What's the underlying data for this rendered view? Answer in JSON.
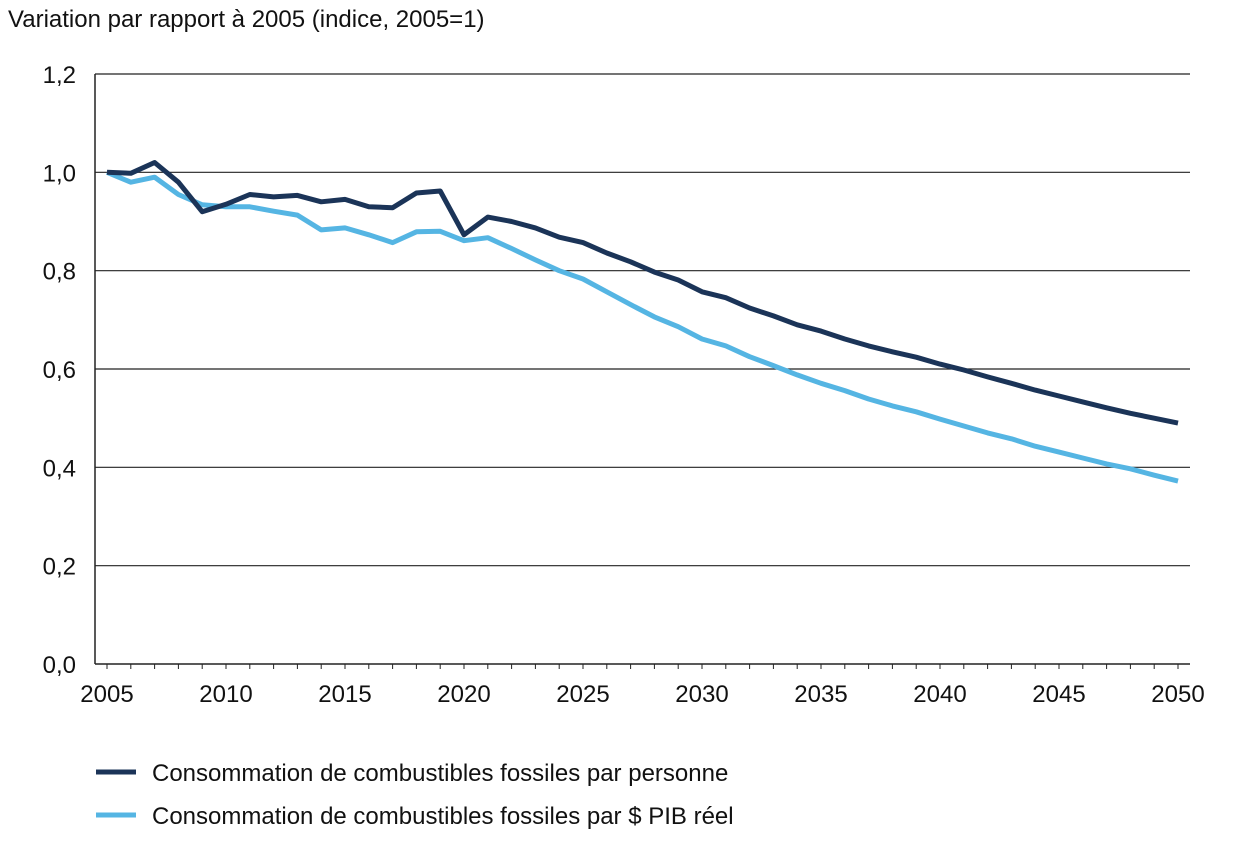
{
  "chart_data": {
    "type": "line",
    "title": "",
    "ylabel": "Variation par rapport à 2005 (indice, 2005=1)",
    "xlabel": "",
    "xlim": [
      2005,
      2050
    ],
    "ylim": [
      0,
      1.2
    ],
    "grid": "horizontal",
    "legend_placement": "bottom-left",
    "x_ticks": [
      "2005",
      "2010",
      "2015",
      "2020",
      "2025",
      "2030",
      "2035",
      "2040",
      "2045",
      "2050"
    ],
    "y_ticks": [
      "0,0",
      "0,2",
      "0,4",
      "0,6",
      "0,8",
      "1,0",
      "1,2"
    ],
    "x": [
      2005,
      2006,
      2007,
      2008,
      2009,
      2010,
      2011,
      2012,
      2013,
      2014,
      2015,
      2016,
      2017,
      2018,
      2019,
      2020,
      2021,
      2022,
      2023,
      2024,
      2025,
      2026,
      2027,
      2028,
      2029,
      2030,
      2031,
      2032,
      2033,
      2034,
      2035,
      2036,
      2037,
      2038,
      2039,
      2040,
      2041,
      2042,
      2043,
      2044,
      2045,
      2046,
      2047,
      2048,
      2049,
      2050
    ],
    "series": [
      {
        "name": "Consommation de combustibles fossiles par personne",
        "color": "#1b3458",
        "values": [
          1.0,
          0.998,
          1.02,
          0.98,
          0.92,
          0.935,
          0.955,
          0.95,
          0.953,
          0.94,
          0.945,
          0.93,
          0.928,
          0.958,
          0.962,
          0.873,
          0.909,
          0.9,
          0.887,
          0.868,
          0.857,
          0.836,
          0.818,
          0.797,
          0.781,
          0.757,
          0.745,
          0.724,
          0.708,
          0.69,
          0.677,
          0.661,
          0.647,
          0.635,
          0.624,
          0.61,
          0.598,
          0.584,
          0.571,
          0.557,
          0.545,
          0.533,
          0.521,
          0.51,
          0.5,
          0.49
        ]
      },
      {
        "name": "Consommation de combustibles fossiles par $ PIB réel",
        "color": "#55b5e3",
        "values": [
          1.0,
          0.98,
          0.99,
          0.955,
          0.934,
          0.93,
          0.93,
          0.921,
          0.913,
          0.883,
          0.887,
          0.873,
          0.857,
          0.879,
          0.88,
          0.861,
          0.867,
          0.845,
          0.822,
          0.8,
          0.783,
          0.757,
          0.731,
          0.706,
          0.686,
          0.661,
          0.647,
          0.625,
          0.607,
          0.588,
          0.571,
          0.556,
          0.539,
          0.525,
          0.513,
          0.498,
          0.484,
          0.47,
          0.458,
          0.443,
          0.431,
          0.419,
          0.407,
          0.397,
          0.384,
          0.372
        ]
      }
    ]
  }
}
